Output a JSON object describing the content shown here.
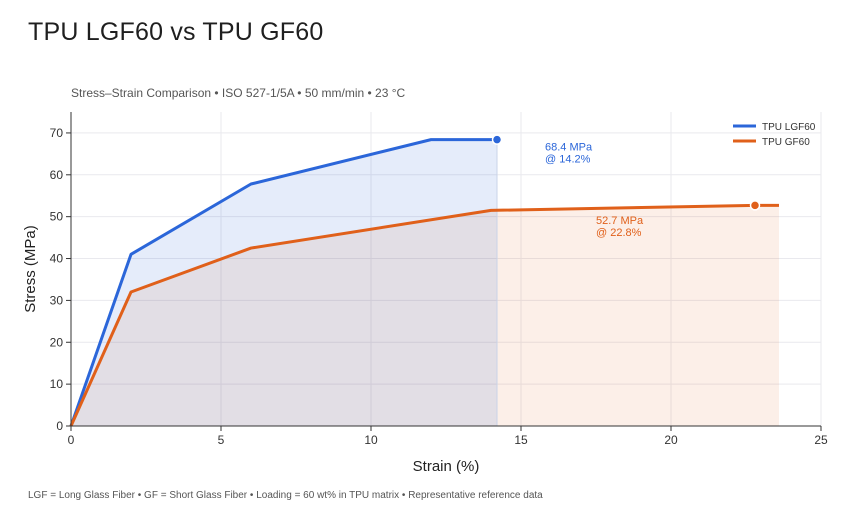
{
  "title": "TPU LGF60  vs  TPU GF60",
  "subtitle": "Stress–Strain Comparison  •  ISO 527-1/5A  •  50 mm/min  •  23 °C",
  "footnote": "LGF = Long Glass Fiber  •  GF = Short Glass Fiber  •  Loading = 60 wt% in TPU matrix  •  Representative reference data",
  "colors": {
    "lgf": "#2b66d9",
    "gf": "#e0601a"
  },
  "chart_data": {
    "type": "line",
    "xlabel": "Strain (%)",
    "ylabel": "Stress (MPa)",
    "xlim": [
      0,
      25
    ],
    "ylim": [
      0,
      75
    ],
    "xticks": [
      0,
      5,
      10,
      15,
      20,
      25
    ],
    "yticks": [
      0,
      10,
      20,
      30,
      40,
      50,
      60,
      70
    ],
    "grid": true,
    "legend_position": "top-right",
    "series": [
      {
        "name": "TPU LGF60",
        "color": "#2b66d9",
        "x": [
          0,
          2,
          6,
          12,
          14.2
        ],
        "y": [
          0,
          41,
          57.8,
          68.4,
          68.4
        ],
        "peak": {
          "x": 14.2,
          "y": 68.4
        },
        "annotation": [
          "68.4 MPa",
          "@ 14.2%"
        ],
        "annotation_at": {
          "x": 15.8,
          "y": 65.8
        }
      },
      {
        "name": "TPU GF60",
        "color": "#e0601a",
        "x": [
          0,
          2,
          6,
          14,
          22.8,
          23.6
        ],
        "y": [
          0,
          32,
          42.5,
          51.5,
          52.7,
          52.7
        ],
        "peak": {
          "x": 22.8,
          "y": 52.7
        },
        "annotation": [
          "52.7 MPa",
          "@ 22.8%"
        ],
        "annotation_at": {
          "x": 17.5,
          "y": 48.2
        }
      }
    ]
  }
}
